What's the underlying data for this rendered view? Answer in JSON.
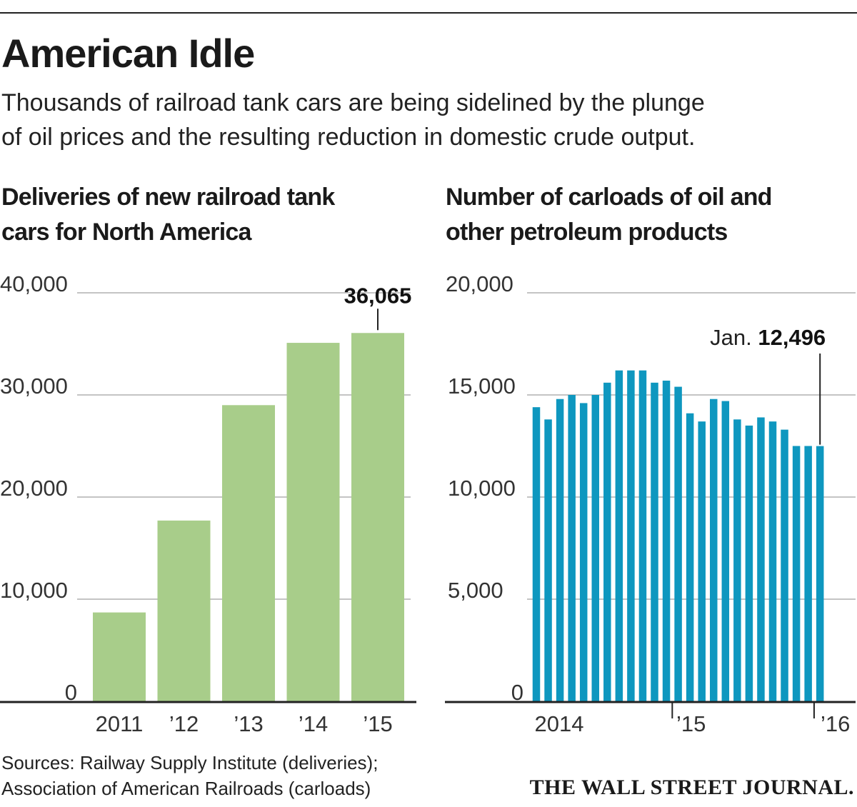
{
  "header": {
    "title": "American Idle",
    "subtitle_lines": [
      "Thousands of railroad tank cars are being sidelined by the plunge",
      "of oil prices and the resulting reduction in domestic crude output."
    ]
  },
  "chart_data": [
    {
      "type": "bar",
      "title_lines": [
        "Deliveries of new railroad tank",
        "cars for North America"
      ],
      "categories": [
        "2011",
        "’12",
        "’13",
        "’14",
        "’15"
      ],
      "values": [
        8700,
        17700,
        29000,
        35100,
        36065
      ],
      "ylim": [
        0,
        40000
      ],
      "yticks": [
        "0",
        "10,000",
        "20,000",
        "30,000",
        "40,000"
      ],
      "annotation": {
        "label": "36,065",
        "category_index": 4
      },
      "color": "#a8cd8a",
      "grid": true
    },
    {
      "type": "bar",
      "title_lines": [
        "Number of carloads of oil and",
        "other petroleum products"
      ],
      "x": [
        "Jan 2014",
        "Feb 2014",
        "Mar 2014",
        "Apr 2014",
        "May 2014",
        "Jun 2014",
        "Jul 2014",
        "Aug 2014",
        "Sep 2014",
        "Oct 2014",
        "Nov 2014",
        "Dec 2014",
        "Jan 2015",
        "Feb 2015",
        "Mar 2015",
        "Apr 2015",
        "May 2015",
        "Jun 2015",
        "Jul 2015",
        "Aug 2015",
        "Sep 2015",
        "Oct 2015",
        "Nov 2015",
        "Dec 2015",
        "Jan 2016"
      ],
      "values": [
        14400,
        13800,
        14800,
        15000,
        14600,
        15000,
        15600,
        16200,
        16200,
        16200,
        15600,
        15700,
        15400,
        14100,
        13700,
        14800,
        14700,
        13800,
        13500,
        13900,
        13700,
        13300,
        12500,
        12500,
        12496
      ],
      "ylim": [
        0,
        20000
      ],
      "yticks": [
        "0",
        "5,000",
        "10,000",
        "15,000",
        "20,000"
      ],
      "xtick_labels": [
        "2014",
        "’15",
        "’16"
      ],
      "annotation": {
        "prefix": "Jan.",
        "label": "12,496",
        "index": 24
      },
      "color": "#0e97bf",
      "grid": true
    }
  ],
  "footer": {
    "source_lines": [
      "Sources: Railway Supply Institute (deliveries);",
      "Association of American Railroads (carloads)"
    ],
    "brand": "THE WALL STREET JOURNAL."
  }
}
